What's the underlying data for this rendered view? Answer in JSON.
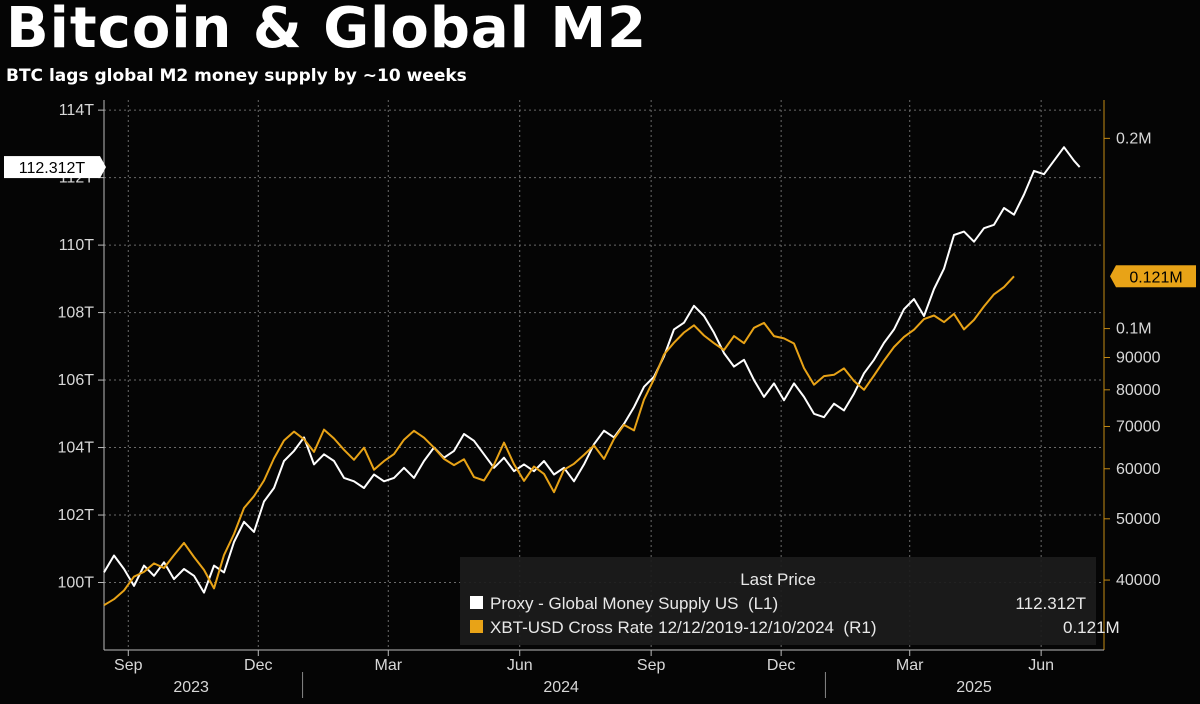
{
  "header": {
    "title": "Bitcoin & Global M2",
    "subtitle": "BTC lags global M2 money supply by ~10 weeks"
  },
  "colors": {
    "background": "#050505",
    "m2_line": "#ffffff",
    "btc_line": "#e8a317",
    "grid": "#6a6a6a",
    "legend_bg": "#1c1c1c"
  },
  "chart_data": {
    "type": "line",
    "x_axis": {
      "month_labels": [
        {
          "date": "2023-09-01",
          "label": "Sep"
        },
        {
          "date": "2023-12-01",
          "label": "Dec"
        },
        {
          "date": "2024-03-01",
          "label": "Mar"
        },
        {
          "date": "2024-06-01",
          "label": "Jun"
        },
        {
          "date": "2024-09-01",
          "label": "Sep"
        },
        {
          "date": "2024-12-01",
          "label": "Dec"
        },
        {
          "date": "2025-03-01",
          "label": "Mar"
        },
        {
          "date": "2025-06-01",
          "label": "Jun"
        }
      ],
      "year_labels": [
        {
          "date": "2023-10-15",
          "label": "2023"
        },
        {
          "date": "2024-06-30",
          "label": "2024"
        },
        {
          "date": "2025-04-15",
          "label": "2025"
        }
      ],
      "year_boundaries": [
        "2024-01-01",
        "2025-01-01"
      ],
      "range": [
        "2023-08-15",
        "2025-07-15"
      ]
    },
    "y_left": {
      "label": "",
      "range": [
        98.0,
        114.3
      ],
      "ticks": [
        {
          "value": 100,
          "label": "100T"
        },
        {
          "value": 102,
          "label": "102T"
        },
        {
          "value": 104,
          "label": "104T"
        },
        {
          "value": 106,
          "label": "106T"
        },
        {
          "value": 108,
          "label": "108T"
        },
        {
          "value": 110,
          "label": "110T"
        },
        {
          "value": 112,
          "label": "112T"
        },
        {
          "value": 114,
          "label": "114T"
        }
      ],
      "last_value_tag": {
        "value": 112.312,
        "label": "112.312T"
      }
    },
    "y_right": {
      "scale": "log",
      "range": [
        31000,
        230000
      ],
      "ticks": [
        {
          "value": 40000,
          "label": "40000"
        },
        {
          "value": 50000,
          "label": "50000"
        },
        {
          "value": 60000,
          "label": "60000"
        },
        {
          "value": 70000,
          "label": "70000"
        },
        {
          "value": 80000,
          "label": "80000"
        },
        {
          "value": 90000,
          "label": "90000"
        },
        {
          "value": 100000,
          "label": "0.1M"
        },
        {
          "value": 200000,
          "label": "0.2M"
        }
      ],
      "last_value_tag": {
        "value": 121000,
        "label": "0.121M"
      }
    },
    "grid": true,
    "legend": {
      "placement": "bottom-right",
      "header": "Last Price",
      "items": [
        {
          "series": "m2",
          "label": "Proxy - Global Money Supply US  (L1)",
          "value": "112.312T"
        },
        {
          "series": "btc",
          "label": "XBT-USD Cross Rate 12/12/2019-12/10/2024  (R1)",
          "value": "0.121M"
        }
      ]
    },
    "series": [
      {
        "key": "m2",
        "name": "Proxy - Global Money Supply US",
        "axis": "left",
        "color": "#ffffff",
        "points": [
          [
            "2023-08-15",
            100.3
          ],
          [
            "2023-08-22",
            100.8
          ],
          [
            "2023-08-29",
            100.4
          ],
          [
            "2023-09-05",
            99.9
          ],
          [
            "2023-09-12",
            100.5
          ],
          [
            "2023-09-19",
            100.2
          ],
          [
            "2023-09-26",
            100.6
          ],
          [
            "2023-10-03",
            100.1
          ],
          [
            "2023-10-10",
            100.4
          ],
          [
            "2023-10-17",
            100.2
          ],
          [
            "2023-10-24",
            99.7
          ],
          [
            "2023-10-31",
            100.5
          ],
          [
            "2023-11-07",
            100.3
          ],
          [
            "2023-11-14",
            101.2
          ],
          [
            "2023-11-21",
            101.8
          ],
          [
            "2023-11-28",
            101.5
          ],
          [
            "2023-12-05",
            102.4
          ],
          [
            "2023-12-12",
            102.8
          ],
          [
            "2023-12-19",
            103.6
          ],
          [
            "2023-12-26",
            103.9
          ],
          [
            "2024-01-02",
            104.3
          ],
          [
            "2024-01-09",
            103.5
          ],
          [
            "2024-01-16",
            103.8
          ],
          [
            "2024-01-23",
            103.6
          ],
          [
            "2024-01-30",
            103.1
          ],
          [
            "2024-02-06",
            103.0
          ],
          [
            "2024-02-13",
            102.8
          ],
          [
            "2024-02-20",
            103.2
          ],
          [
            "2024-02-27",
            103.0
          ],
          [
            "2024-03-05",
            103.1
          ],
          [
            "2024-03-12",
            103.4
          ],
          [
            "2024-03-19",
            103.1
          ],
          [
            "2024-03-26",
            103.6
          ],
          [
            "2024-04-02",
            104.0
          ],
          [
            "2024-04-09",
            103.7
          ],
          [
            "2024-04-16",
            103.9
          ],
          [
            "2024-04-23",
            104.4
          ],
          [
            "2024-04-30",
            104.2
          ],
          [
            "2024-05-07",
            103.8
          ],
          [
            "2024-05-14",
            103.4
          ],
          [
            "2024-05-21",
            103.7
          ],
          [
            "2024-05-28",
            103.3
          ],
          [
            "2024-06-04",
            103.5
          ],
          [
            "2024-06-11",
            103.3
          ],
          [
            "2024-06-18",
            103.6
          ],
          [
            "2024-06-25",
            103.2
          ],
          [
            "2024-07-02",
            103.4
          ],
          [
            "2024-07-09",
            103.0
          ],
          [
            "2024-07-16",
            103.5
          ],
          [
            "2024-07-23",
            104.1
          ],
          [
            "2024-07-30",
            104.5
          ],
          [
            "2024-08-06",
            104.3
          ],
          [
            "2024-08-13",
            104.7
          ],
          [
            "2024-08-20",
            105.2
          ],
          [
            "2024-08-27",
            105.8
          ],
          [
            "2024-09-03",
            106.1
          ],
          [
            "2024-09-10",
            106.7
          ],
          [
            "2024-09-17",
            107.5
          ],
          [
            "2024-09-24",
            107.7
          ],
          [
            "2024-10-01",
            108.2
          ],
          [
            "2024-10-08",
            107.9
          ],
          [
            "2024-10-15",
            107.4
          ],
          [
            "2024-10-22",
            106.8
          ],
          [
            "2024-10-29",
            106.4
          ],
          [
            "2024-11-05",
            106.6
          ],
          [
            "2024-11-12",
            106.0
          ],
          [
            "2024-11-19",
            105.5
          ],
          [
            "2024-11-26",
            105.9
          ],
          [
            "2024-12-03",
            105.4
          ],
          [
            "2024-12-10",
            105.9
          ],
          [
            "2024-12-17",
            105.5
          ],
          [
            "2024-12-24",
            105.0
          ],
          [
            "2024-12-31",
            104.9
          ],
          [
            "2025-01-07",
            105.3
          ],
          [
            "2025-01-14",
            105.1
          ],
          [
            "2025-01-21",
            105.6
          ],
          [
            "2025-01-28",
            106.2
          ],
          [
            "2025-02-04",
            106.6
          ],
          [
            "2025-02-11",
            107.1
          ],
          [
            "2025-02-18",
            107.5
          ],
          [
            "2025-02-25",
            108.1
          ],
          [
            "2025-03-04",
            108.4
          ],
          [
            "2025-03-11",
            107.9
          ],
          [
            "2025-03-18",
            108.7
          ],
          [
            "2025-03-25",
            109.3
          ],
          [
            "2025-04-01",
            110.3
          ],
          [
            "2025-04-08",
            110.4
          ],
          [
            "2025-04-15",
            110.1
          ],
          [
            "2025-04-22",
            110.5
          ],
          [
            "2025-04-29",
            110.6
          ],
          [
            "2025-05-06",
            111.1
          ],
          [
            "2025-05-13",
            110.9
          ],
          [
            "2025-05-20",
            111.5
          ],
          [
            "2025-05-27",
            112.2
          ],
          [
            "2025-06-03",
            112.1
          ],
          [
            "2025-06-10",
            112.5
          ],
          [
            "2025-06-17",
            112.9
          ],
          [
            "2025-06-24",
            112.5
          ],
          [
            "2025-06-28",
            112.312
          ]
        ]
      },
      {
        "key": "btc",
        "name": "XBT-USD Cross Rate 12/12/2019-12/10/2024",
        "axis": "right",
        "color": "#e8a317",
        "points": [
          [
            "2023-08-15",
            36500
          ],
          [
            "2023-08-22",
            37300
          ],
          [
            "2023-08-29",
            38500
          ],
          [
            "2023-09-05",
            40500
          ],
          [
            "2023-09-12",
            41200
          ],
          [
            "2023-09-19",
            42500
          ],
          [
            "2023-09-26",
            41800
          ],
          [
            "2023-10-03",
            43800
          ],
          [
            "2023-10-10",
            45800
          ],
          [
            "2023-10-17",
            43500
          ],
          [
            "2023-10-24",
            41500
          ],
          [
            "2023-10-31",
            38800
          ],
          [
            "2023-11-07",
            43800
          ],
          [
            "2023-11-14",
            47300
          ],
          [
            "2023-11-21",
            52000
          ],
          [
            "2023-11-28",
            54300
          ],
          [
            "2023-12-05",
            57500
          ],
          [
            "2023-12-12",
            62300
          ],
          [
            "2023-12-19",
            66500
          ],
          [
            "2023-12-26",
            68700
          ],
          [
            "2024-01-02",
            66800
          ],
          [
            "2024-01-09",
            63800
          ],
          [
            "2024-01-16",
            69200
          ],
          [
            "2024-01-23",
            67000
          ],
          [
            "2024-01-30",
            64300
          ],
          [
            "2024-02-06",
            62000
          ],
          [
            "2024-02-13",
            64800
          ],
          [
            "2024-02-20",
            59800
          ],
          [
            "2024-02-27",
            61700
          ],
          [
            "2024-03-05",
            63300
          ],
          [
            "2024-03-12",
            66700
          ],
          [
            "2024-03-19",
            68900
          ],
          [
            "2024-03-26",
            67200
          ],
          [
            "2024-04-02",
            64800
          ],
          [
            "2024-04-09",
            62200
          ],
          [
            "2024-04-16",
            60800
          ],
          [
            "2024-04-23",
            62100
          ],
          [
            "2024-04-30",
            58200
          ],
          [
            "2024-05-07",
            57500
          ],
          [
            "2024-05-14",
            60900
          ],
          [
            "2024-05-21",
            66000
          ],
          [
            "2024-05-28",
            61000
          ],
          [
            "2024-06-04",
            57400
          ],
          [
            "2024-06-11",
            60500
          ],
          [
            "2024-06-18",
            58900
          ],
          [
            "2024-06-25",
            55100
          ],
          [
            "2024-07-02",
            59800
          ],
          [
            "2024-07-09",
            61100
          ],
          [
            "2024-07-16",
            63100
          ],
          [
            "2024-07-23",
            65300
          ],
          [
            "2024-07-30",
            62200
          ],
          [
            "2024-08-06",
            66900
          ],
          [
            "2024-08-13",
            70400
          ],
          [
            "2024-08-20",
            69000
          ],
          [
            "2024-08-27",
            77200
          ],
          [
            "2024-09-03",
            83200
          ],
          [
            "2024-09-10",
            91000
          ],
          [
            "2024-09-17",
            95000
          ],
          [
            "2024-09-24",
            98600
          ],
          [
            "2024-10-01",
            101200
          ],
          [
            "2024-10-08",
            97500
          ],
          [
            "2024-10-15",
            94800
          ],
          [
            "2024-10-22",
            92500
          ],
          [
            "2024-10-29",
            97300
          ],
          [
            "2024-11-05",
            94800
          ],
          [
            "2024-11-12",
            100300
          ],
          [
            "2024-11-19",
            102100
          ],
          [
            "2024-11-26",
            97300
          ],
          [
            "2024-12-03",
            96500
          ],
          [
            "2024-12-10",
            94700
          ],
          [
            "2024-12-17",
            86600
          ],
          [
            "2024-12-24",
            81500
          ],
          [
            "2024-12-31",
            84100
          ],
          [
            "2025-01-07",
            84500
          ],
          [
            "2025-01-14",
            86500
          ],
          [
            "2025-01-21",
            82600
          ],
          [
            "2025-01-28",
            80000
          ],
          [
            "2025-02-04",
            84300
          ],
          [
            "2025-02-11",
            89000
          ],
          [
            "2025-02-18",
            93500
          ],
          [
            "2025-02-25",
            97000
          ],
          [
            "2025-03-04",
            99600
          ],
          [
            "2025-03-11",
            103500
          ],
          [
            "2025-03-18",
            104900
          ],
          [
            "2025-03-25",
            102400
          ],
          [
            "2025-04-01",
            105500
          ],
          [
            "2025-04-08",
            99700
          ],
          [
            "2025-04-15",
            103200
          ],
          [
            "2025-04-22",
            108400
          ],
          [
            "2025-04-29",
            113300
          ],
          [
            "2025-05-06",
            116300
          ],
          [
            "2025-05-13",
            121000
          ]
        ]
      }
    ]
  }
}
